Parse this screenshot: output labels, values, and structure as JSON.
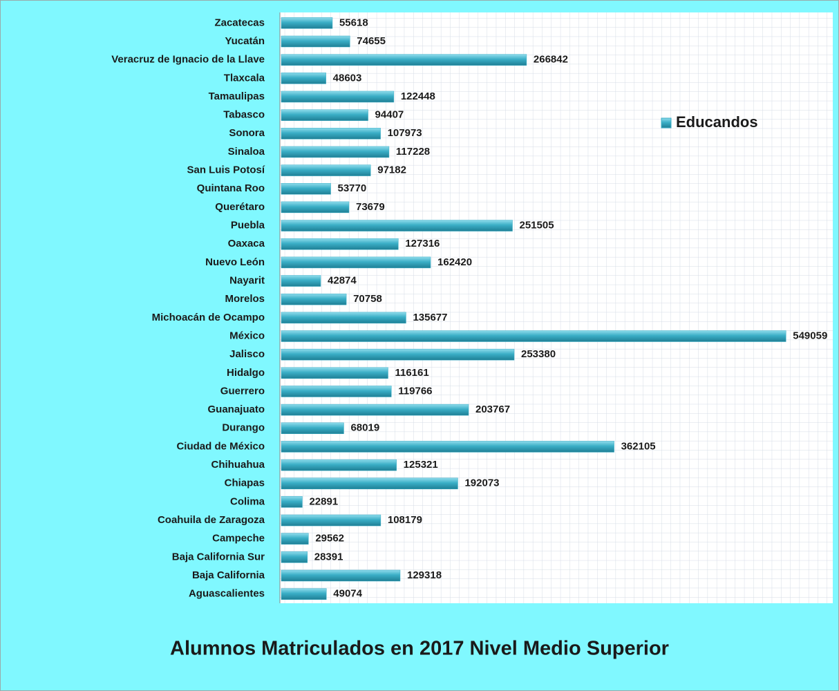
{
  "chart_data": {
    "type": "barh",
    "title": "Alumnos Matriculados en 2017 Nivel Medio Superior",
    "categories": [
      "Zacatecas",
      "Yucatán",
      "Veracruz de Ignacio de la Llave",
      "Tlaxcala",
      "Tamaulipas",
      "Tabasco",
      "Sonora",
      "Sinaloa",
      "San Luis Potosí",
      "Quintana Roo",
      "Querétaro",
      "Puebla",
      "Oaxaca",
      "Nuevo León",
      "Nayarit",
      "Morelos",
      "Michoacán de Ocampo",
      "México",
      "Jalisco",
      "Hidalgo",
      "Guerrero",
      "Guanajuato",
      "Durango",
      "Ciudad de México",
      "Chihuahua",
      "Chiapas",
      "Colima",
      "Coahuila de Zaragoza",
      "Campeche",
      "Baja California Sur",
      "Baja California",
      "Aguascalientes"
    ],
    "series": [
      {
        "name": "Educandos",
        "color": "#3aaec6",
        "values": [
          55618,
          74655,
          266842,
          48603,
          122448,
          94407,
          107973,
          117228,
          97182,
          53770,
          73679,
          251505,
          127316,
          162420,
          42874,
          70758,
          135677,
          549059,
          253380,
          116161,
          119766,
          203767,
          68019,
          362105,
          125321,
          192073,
          22891,
          108179,
          29562,
          28391,
          129318,
          49074
        ]
      }
    ],
    "xlim": [
      0,
      600000
    ],
    "grid": true,
    "legend": "right"
  }
}
